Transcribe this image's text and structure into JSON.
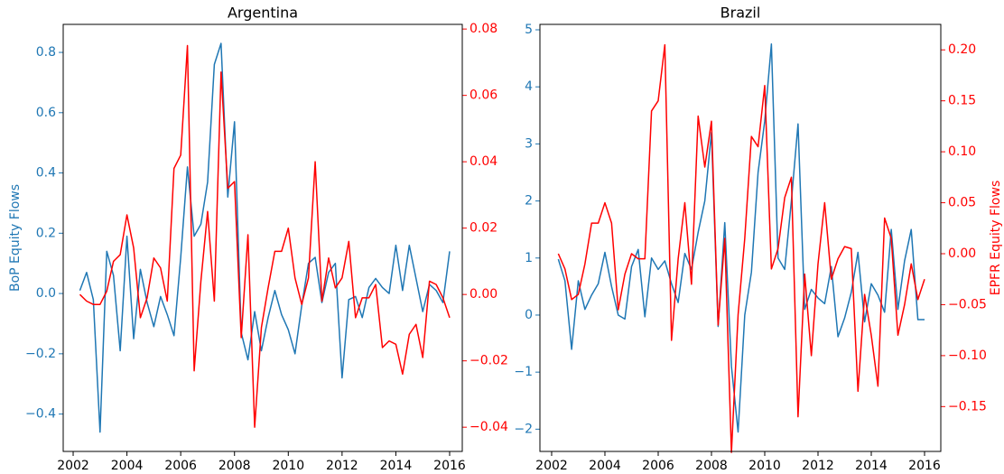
{
  "chart_data": [
    {
      "type": "line",
      "title": "Argentina",
      "ylabel": "BoP Equity Flows",
      "x": [
        2002.25,
        2002.5,
        2002.75,
        2003,
        2003.25,
        2003.5,
        2003.75,
        2004,
        2004.25,
        2004.5,
        2004.75,
        2005,
        2005.25,
        2005.5,
        2005.75,
        2006,
        2006.25,
        2006.5,
        2006.75,
        2007,
        2007.25,
        2007.5,
        2007.75,
        2008,
        2008.25,
        2008.5,
        2008.75,
        2009,
        2009.25,
        2009.5,
        2009.75,
        2010,
        2010.25,
        2010.5,
        2010.75,
        2011,
        2011.25,
        2011.5,
        2011.75,
        2012,
        2012.25,
        2012.5,
        2012.75,
        2013,
        2013.25,
        2013.5,
        2013.75,
        2014,
        2014.25,
        2014.5,
        2014.75,
        2015,
        2015.25,
        2015.5,
        2015.75,
        2016
      ],
      "series": [
        {
          "color": "#1f77b4",
          "values": [
            0.01,
            0.07,
            -0.02,
            -0.46,
            0.14,
            0.06,
            -0.19,
            0.19,
            -0.15,
            0.08,
            -0.03,
            -0.11,
            -0.01,
            -0.07,
            -0.14,
            0.12,
            0.42,
            0.19,
            0.23,
            0.37,
            0.76,
            0.83,
            0.32,
            0.57,
            -0.13,
            -0.22,
            -0.06,
            -0.19,
            -0.08,
            0.01,
            -0.07,
            -0.12,
            -0.2,
            -0.04,
            0.1,
            0.12,
            -0.03,
            0.07,
            0.1,
            -0.28,
            -0.02,
            -0.01,
            -0.08,
            0.02,
            0.05,
            0.02,
            0.0,
            0.16,
            0.01,
            0.16,
            0.05,
            -0.06,
            0.03,
            0.01,
            -0.03,
            0.14
          ]
        },
        {
          "color": "#ff0000",
          "axis": "y2",
          "values": [
            0.0,
            -0.002,
            -0.003,
            -0.003,
            0.001,
            0.01,
            0.012,
            0.024,
            0.014,
            -0.007,
            -0.001,
            0.011,
            0.008,
            -0.002,
            0.038,
            0.042,
            0.075,
            -0.023,
            0.004,
            0.025,
            -0.002,
            0.067,
            0.032,
            0.034,
            -0.013,
            0.018,
            -0.04,
            -0.01,
            0.002,
            0.013,
            0.013,
            0.02,
            0.005,
            -0.003,
            0.005,
            0.04,
            -0.002,
            0.011,
            0.002,
            0.005,
            0.016,
            -0.007,
            -0.001,
            -0.001,
            0.003,
            -0.016,
            -0.014,
            -0.015,
            -0.024,
            -0.012,
            -0.009,
            -0.019,
            0.004,
            0.003,
            -0.001,
            -0.007
          ]
        }
      ],
      "xlim": [
        2001.63,
        2016.47
      ],
      "ylim": [
        -0.524,
        0.893
      ],
      "y2lim": [
        -0.0473,
        0.0814
      ],
      "xticks": [
        2002,
        2004,
        2006,
        2008,
        2010,
        2012,
        2014,
        2016
      ],
      "yticks": [
        {
          "value": -0.4,
          "label": "−0.4"
        },
        {
          "value": -0.2,
          "label": "−0.2"
        },
        {
          "value": 0,
          "label": "0.0"
        },
        0.2,
        0.4,
        0.6,
        0.8
      ],
      "y2ticks": [
        {
          "value": -0.04,
          "label": "−0.04"
        },
        {
          "value": -0.02,
          "label": "−0.02"
        },
        {
          "value": 0,
          "label": "0.00"
        },
        0.02,
        0.04,
        0.06,
        0.08
      ]
    },
    {
      "type": "line",
      "title": "Brazil",
      "y2label": "EPFR Equity Flows",
      "x": [
        2002.25,
        2002.5,
        2002.75,
        2003,
        2003.25,
        2003.5,
        2003.75,
        2004,
        2004.25,
        2004.5,
        2004.75,
        2005,
        2005.25,
        2005.5,
        2005.75,
        2006,
        2006.25,
        2006.5,
        2006.75,
        2007,
        2007.25,
        2007.5,
        2007.75,
        2008,
        2008.25,
        2008.5,
        2008.75,
        2009,
        2009.25,
        2009.5,
        2009.75,
        2010,
        2010.25,
        2010.5,
        2010.75,
        2011,
        2011.25,
        2011.5,
        2011.75,
        2012,
        2012.25,
        2012.5,
        2012.75,
        2013,
        2013.25,
        2013.5,
        2013.75,
        2014,
        2014.25,
        2014.5,
        2014.75,
        2015,
        2015.25,
        2015.5,
        2015.75,
        2016
      ],
      "series": [
        {
          "color": "#1f77b4",
          "values": [
            0.98,
            0.6,
            -0.6,
            0.6,
            0.1,
            0.35,
            0.55,
            1.1,
            0.5,
            0.0,
            -0.07,
            0.85,
            1.15,
            -0.03,
            1.0,
            0.8,
            0.95,
            0.55,
            0.22,
            1.08,
            0.8,
            1.45,
            2.0,
            3.2,
            -0.2,
            1.62,
            -0.9,
            -2.05,
            0.0,
            0.75,
            2.5,
            3.4,
            4.75,
            1.0,
            0.8,
            2.0,
            3.35,
            0.1,
            0.45,
            0.3,
            0.2,
            0.85,
            -0.38,
            -0.05,
            0.4,
            1.1,
            -0.12,
            0.55,
            0.35,
            0.05,
            1.5,
            0.1,
            0.95,
            1.5,
            -0.08,
            -0.08
          ]
        },
        {
          "color": "#ff0000",
          "axis": "y2",
          "values": [
            0.0,
            -0.015,
            -0.045,
            -0.04,
            -0.01,
            0.03,
            0.03,
            0.05,
            0.03,
            -0.055,
            -0.02,
            0.0,
            -0.005,
            -0.005,
            0.14,
            0.15,
            0.205,
            -0.085,
            -0.005,
            0.05,
            -0.03,
            0.135,
            0.085,
            0.13,
            -0.07,
            0.015,
            -0.195,
            -0.06,
            0.015,
            0.115,
            0.105,
            0.165,
            -0.015,
            0.005,
            0.055,
            0.075,
            -0.16,
            -0.02,
            -0.1,
            -0.01,
            0.05,
            -0.025,
            -0.005,
            0.007,
            0.005,
            -0.135,
            -0.04,
            -0.08,
            -0.13,
            0.035,
            0.015,
            -0.08,
            -0.05,
            -0.01,
            -0.045,
            -0.025
          ]
        }
      ],
      "xlim": [
        2001.56,
        2016.61
      ],
      "ylim": [
        -2.39,
        5.095
      ],
      "y2lim": [
        -0.194,
        0.225
      ],
      "xticks": [
        2002,
        2004,
        2006,
        2008,
        2010,
        2012,
        2014,
        2016
      ],
      "yticks": [
        {
          "value": -2,
          "label": "−2"
        },
        {
          "value": -1,
          "label": "−1"
        },
        0,
        1,
        2,
        3,
        4,
        5
      ],
      "y2ticks": [
        {
          "value": -0.15,
          "label": "−0.15"
        },
        {
          "value": -0.1,
          "label": "−0.10"
        },
        {
          "value": -0.05,
          "label": "−0.05"
        },
        {
          "value": 0,
          "label": "0.00"
        },
        0.05,
        {
          "value": 0.1,
          "label": "0.10"
        },
        0.15,
        {
          "value": 0.2,
          "label": "0.20"
        }
      ]
    }
  ]
}
